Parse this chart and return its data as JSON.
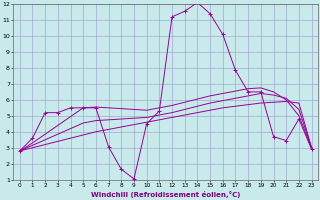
{
  "xlabel": "Windchill (Refroidissement éolien,°C)",
  "x_values": [
    0,
    1,
    2,
    3,
    4,
    5,
    6,
    7,
    8,
    9,
    10,
    11,
    12,
    13,
    14,
    15,
    16,
    17,
    18,
    19,
    20,
    21,
    22,
    23
  ],
  "y_main": [
    2.8,
    3.6,
    5.2,
    5.2,
    5.5,
    5.5,
    5.5,
    3.05,
    1.65,
    1.05,
    4.5,
    5.3,
    11.2,
    11.55,
    12.1,
    11.4,
    10.1,
    7.85,
    6.5,
    6.5,
    3.7,
    3.45,
    4.8,
    2.9
  ],
  "y_line1": [
    2.8,
    3.0,
    3.2,
    3.4,
    3.6,
    3.8,
    4.0,
    4.15,
    4.3,
    4.45,
    4.6,
    4.75,
    4.9,
    5.05,
    5.2,
    5.35,
    5.5,
    5.6,
    5.7,
    5.8,
    5.85,
    5.9,
    5.8,
    3.0
  ],
  "y_line2": [
    2.8,
    3.15,
    3.5,
    3.85,
    4.2,
    4.55,
    4.7,
    4.75,
    4.8,
    4.85,
    4.9,
    5.05,
    5.2,
    5.4,
    5.6,
    5.8,
    5.95,
    6.1,
    6.25,
    6.4,
    6.3,
    6.1,
    5.4,
    3.0
  ],
  "y_line3": [
    2.8,
    3.3,
    3.85,
    4.4,
    4.95,
    5.5,
    5.55,
    5.5,
    5.45,
    5.4,
    5.35,
    5.5,
    5.65,
    5.85,
    6.05,
    6.25,
    6.4,
    6.55,
    6.7,
    6.75,
    6.5,
    6.0,
    5.0,
    3.0
  ],
  "ylim_min": 1,
  "ylim_max": 12,
  "xlim_min": 0,
  "xlim_max": 23,
  "bg_color": "#c8eaea",
  "line_color": "#990099",
  "grid_color": "#9999cc"
}
